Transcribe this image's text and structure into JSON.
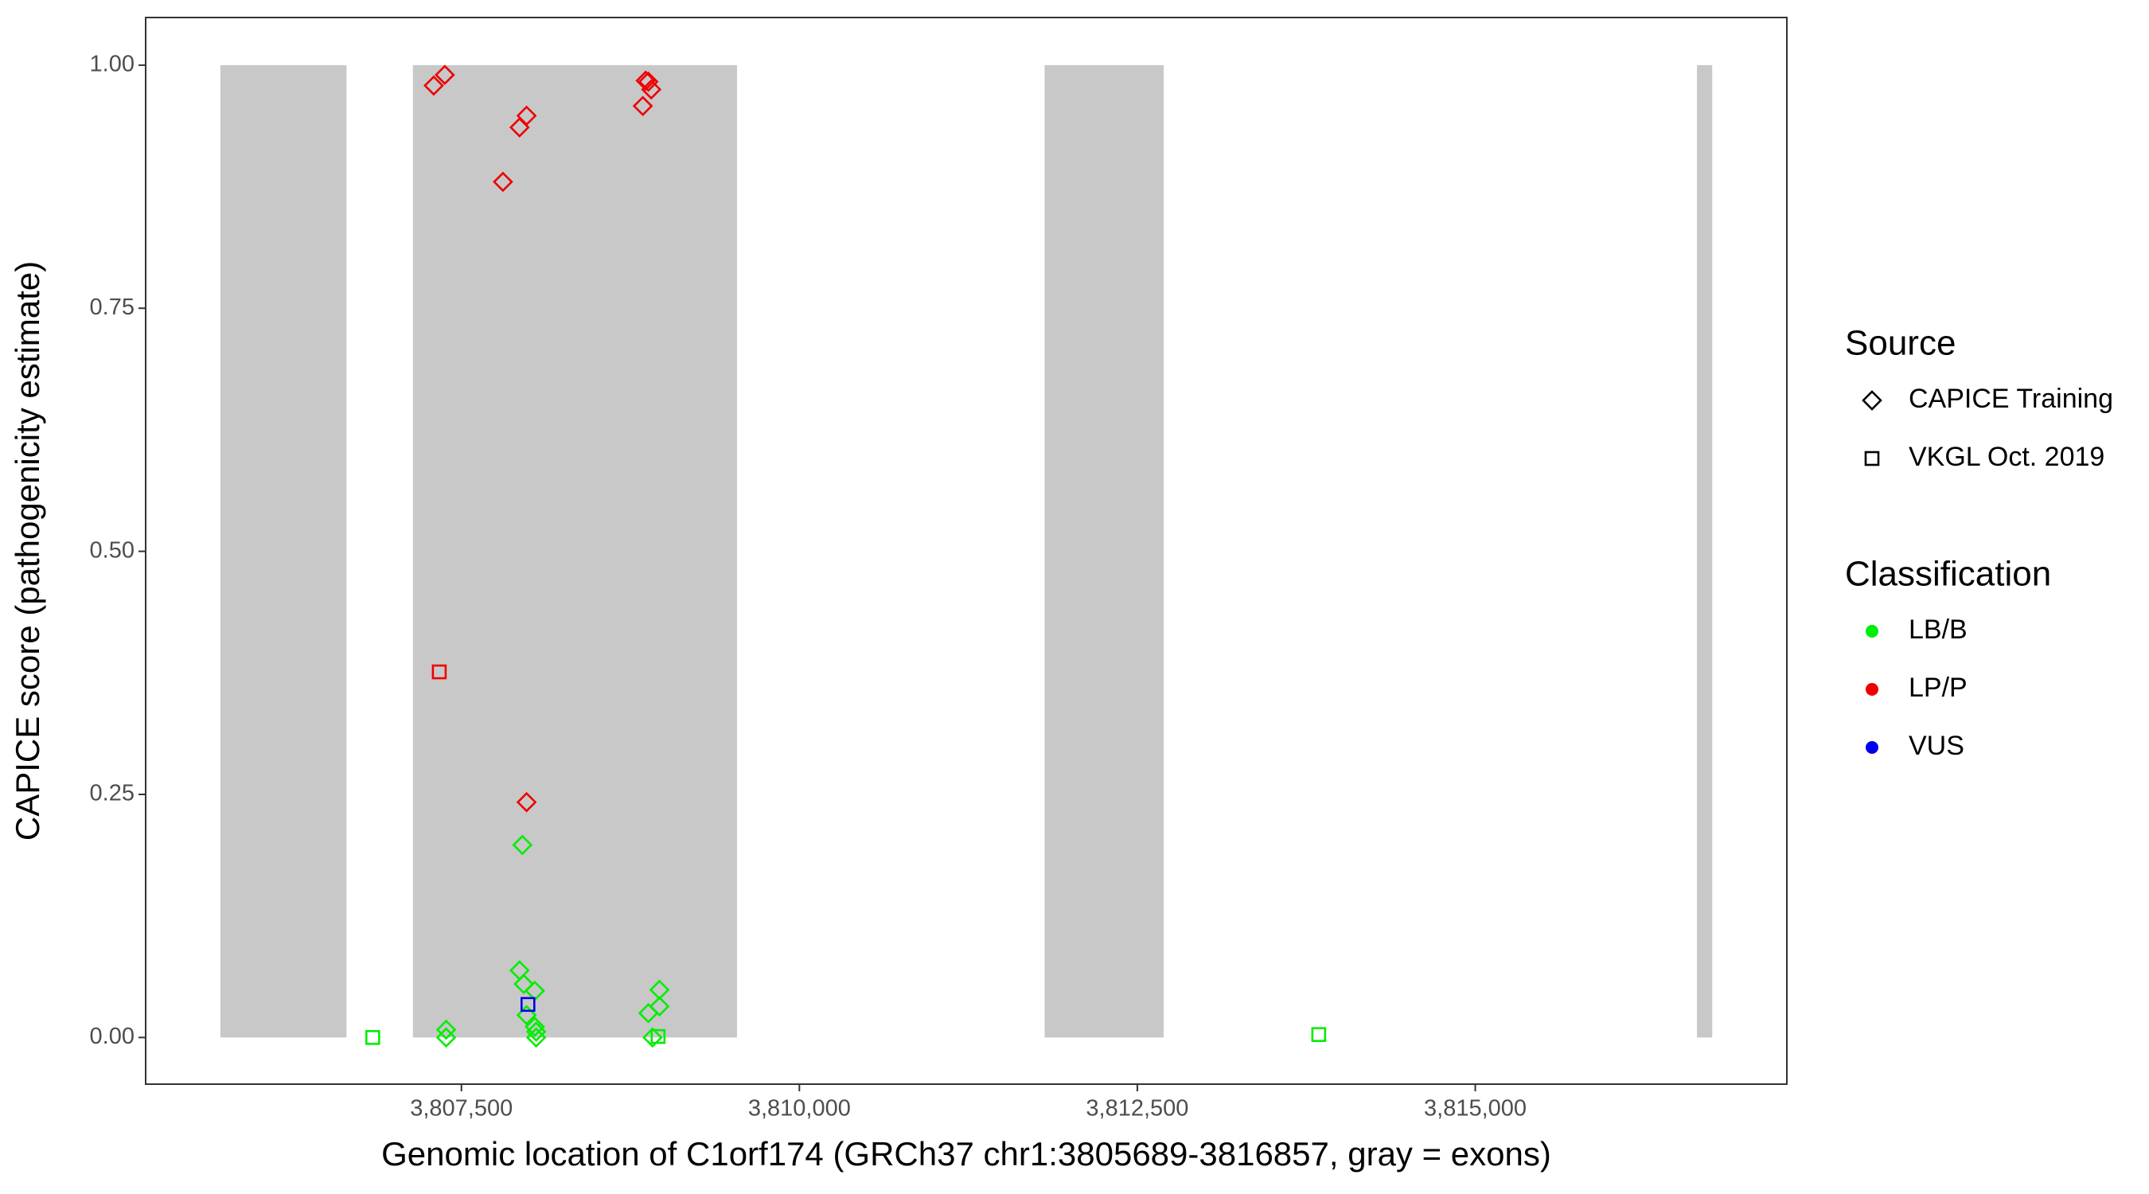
{
  "chart_data": {
    "type": "scatter",
    "x_label": "Genomic location of C1orf174 (GRCh37 chr1:3805689-3816857, gray = exons)",
    "y_label": "CAPICE score (pathogenicity estimate)",
    "xlim": [
      3805164,
      3817305
    ],
    "ylim": [
      -0.048,
      1.049
    ],
    "xticks": [
      {
        "value": 3807500,
        "label": "3,807,500"
      },
      {
        "value": 3810000,
        "label": "3,810,000"
      },
      {
        "value": 3812500,
        "label": "3,812,500"
      },
      {
        "value": 3815000,
        "label": "3,815,000"
      }
    ],
    "yticks": [
      {
        "value": 0,
        "label": "0.00"
      },
      0.25,
      {
        "value": 0.5,
        "label": "0.50"
      },
      0.75,
      {
        "value": 1,
        "label": "1.00"
      }
    ],
    "exons": {
      "color": "#c8c8c8",
      "starts": [
        3805717,
        3807141,
        3811814,
        3816640
      ],
      "ends": [
        3806650,
        3809539,
        3812695,
        3816753
      ],
      "bottom": 0,
      "top": 1
    },
    "source_title": "Source",
    "sources": [
      {
        "name": "CAPICE Training",
        "shape": "diamond"
      },
      {
        "name": "VKGL Oct. 2019",
        "shape": "square"
      }
    ],
    "classification_title": "Classification",
    "classifications": [
      {
        "name": "LB/B",
        "color": "#00ee00"
      },
      {
        "name": "LP/P",
        "color": "#ee0000"
      },
      {
        "name": "VUS",
        "color": "#0000ee"
      }
    ],
    "series": [
      {
        "source": "CAPICE Training",
        "classification": "LP/P",
        "x": [
          3807295,
          3807377,
          3807807,
          3807930,
          3807982,
          3807982,
          3808842,
          3808863,
          3808883,
          3808904
        ],
        "y": [
          0.979,
          0.99,
          0.88,
          0.936,
          0.948,
          0.242,
          0.958,
          0.984,
          0.983,
          0.975
        ]
      },
      {
        "source": "CAPICE Training",
        "classification": "LB/B",
        "x": [
          3807951,
          3807930,
          3807961,
          3808043,
          3807982,
          3808043,
          3808053,
          3808053,
          3807387,
          3807387,
          3808965,
          3808965,
          3808883,
          3808914
        ],
        "y": [
          0.198,
          0.069,
          0.055,
          0.048,
          0.023,
          0.011,
          0.006,
          0,
          0.008,
          0,
          0.049,
          0.032,
          0.025,
          0
        ]
      },
      {
        "source": "VKGL Oct. 2019",
        "classification": "LP/P",
        "x": [
          3807336
        ],
        "y": [
          0.376
        ]
      },
      {
        "source": "VKGL Oct. 2019",
        "classification": "VUS",
        "x": [
          3807992
        ],
        "y": [
          0.034
        ]
      },
      {
        "source": "VKGL Oct. 2019",
        "classification": "LB/B",
        "x": [
          3806844,
          3808955,
          3813842
        ],
        "y": [
          0,
          0.001,
          0.003
        ]
      }
    ]
  }
}
